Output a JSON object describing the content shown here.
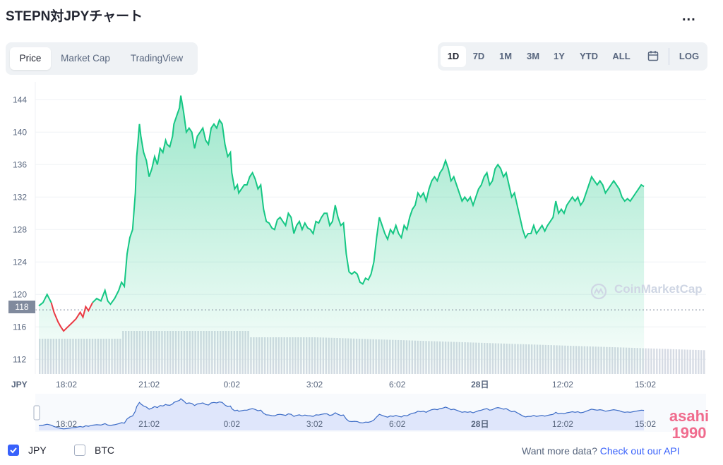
{
  "header": {
    "title": "STEPN対JPYチャート",
    "more_label": "..."
  },
  "tabs": [
    {
      "label": "Price",
      "active": true
    },
    {
      "label": "Market Cap",
      "active": false
    },
    {
      "label": "TradingView",
      "active": false
    }
  ],
  "ranges": [
    {
      "label": "1D",
      "active": true
    },
    {
      "label": "7D",
      "active": false
    },
    {
      "label": "1M",
      "active": false
    },
    {
      "label": "3M",
      "active": false
    },
    {
      "label": "1Y",
      "active": false
    },
    {
      "label": "YTD",
      "active": false
    },
    {
      "label": "ALL",
      "active": false
    }
  ],
  "log_label": "LOG",
  "current_price_label": "118",
  "watermark": "CoinMarketCap",
  "footer": {
    "legend_jpy": "JPY",
    "legend_btc": "BTC",
    "promo_text": "Want more data?",
    "promo_link": "Check out our API"
  },
  "stamp": {
    "line1": "asahi",
    "line2": "1990"
  },
  "colors": {
    "up_line": "#16c784",
    "down_line": "#ea3943",
    "area_fill": "#16c784",
    "volume": "#d6dbe4",
    "navigator_fill": "#dfe6fb",
    "navigator_line": "#3b6bc6",
    "accent": "#3861fb"
  },
  "chart_data": {
    "type": "line",
    "ylabel": "JPY",
    "yticks": [
      112,
      116,
      120,
      124,
      128,
      132,
      136,
      140,
      144
    ],
    "ylim": [
      110.2,
      146.2
    ],
    "xticks": [
      {
        "t": 1,
        "label": "18:02"
      },
      {
        "t": 4,
        "label": "21:02"
      },
      {
        "t": 7,
        "label": "0:02"
      },
      {
        "t": 10,
        "label": "3:02"
      },
      {
        "t": 13,
        "label": "6:02"
      },
      {
        "t": 16,
        "label": "28日"
      },
      {
        "t": 19,
        "label": "12:02"
      },
      {
        "t": 22,
        "label": "15:02"
      }
    ],
    "xlim": [
      0,
      24.2
    ],
    "baseline": 118.1,
    "grid": true,
    "series": [
      {
        "values": [
          [
            0.0,
            118.6
          ],
          [
            0.15,
            119.0
          ],
          [
            0.3,
            120.0
          ],
          [
            0.45,
            119.0
          ],
          [
            0.55,
            117.8
          ],
          [
            0.7,
            116.6
          ],
          [
            0.8,
            116.0
          ],
          [
            0.9,
            115.5
          ],
          [
            1.05,
            116.0
          ],
          [
            1.2,
            116.5
          ],
          [
            1.35,
            117.0
          ],
          [
            1.5,
            117.8
          ],
          [
            1.6,
            117.2
          ],
          [
            1.7,
            118.5
          ],
          [
            1.8,
            118.0
          ],
          [
            1.95,
            119.0
          ],
          [
            2.1,
            119.5
          ],
          [
            2.25,
            119.2
          ],
          [
            2.4,
            120.5
          ],
          [
            2.5,
            119.2
          ],
          [
            2.6,
            118.8
          ],
          [
            2.75,
            119.5
          ],
          [
            2.9,
            120.5
          ],
          [
            3.0,
            121.5
          ],
          [
            3.1,
            121.0
          ],
          [
            3.2,
            125.0
          ],
          [
            3.3,
            127.0
          ],
          [
            3.4,
            128.0
          ],
          [
            3.5,
            132.5
          ],
          [
            3.55,
            137.0
          ],
          [
            3.6,
            139.0
          ],
          [
            3.65,
            141.0
          ],
          [
            3.7,
            139.5
          ],
          [
            3.8,
            137.5
          ],
          [
            3.9,
            136.5
          ],
          [
            4.0,
            134.5
          ],
          [
            4.1,
            135.5
          ],
          [
            4.2,
            137.0
          ],
          [
            4.3,
            136.0
          ],
          [
            4.4,
            138.0
          ],
          [
            4.5,
            137.5
          ],
          [
            4.6,
            139.0
          ],
          [
            4.65,
            138.5
          ],
          [
            4.75,
            138.2
          ],
          [
            4.85,
            139.5
          ],
          [
            4.9,
            141.0
          ],
          [
            5.0,
            142.0
          ],
          [
            5.1,
            143.0
          ],
          [
            5.15,
            144.5
          ],
          [
            5.25,
            142.5
          ],
          [
            5.35,
            140.0
          ],
          [
            5.45,
            140.5
          ],
          [
            5.55,
            140.0
          ],
          [
            5.65,
            138.0
          ],
          [
            5.75,
            139.5
          ],
          [
            5.85,
            140.0
          ],
          [
            5.95,
            140.5
          ],
          [
            6.05,
            139.0
          ],
          [
            6.15,
            138.5
          ],
          [
            6.25,
            140.5
          ],
          [
            6.35,
            141.0
          ],
          [
            6.45,
            140.5
          ],
          [
            6.55,
            141.5
          ],
          [
            6.65,
            141.0
          ],
          [
            6.75,
            138.5
          ],
          [
            6.85,
            137.0
          ],
          [
            6.95,
            137.5
          ],
          [
            7.0,
            135.0
          ],
          [
            7.1,
            133.0
          ],
          [
            7.2,
            133.5
          ],
          [
            7.25,
            132.5
          ],
          [
            7.35,
            133.0
          ],
          [
            7.45,
            133.5
          ],
          [
            7.55,
            133.5
          ],
          [
            7.65,
            134.5
          ],
          [
            7.75,
            135.0
          ],
          [
            7.85,
            134.2
          ],
          [
            7.95,
            133.0
          ],
          [
            8.05,
            133.5
          ],
          [
            8.15,
            130.5
          ],
          [
            8.25,
            129.0
          ],
          [
            8.35,
            128.8
          ],
          [
            8.45,
            128.2
          ],
          [
            8.55,
            128.0
          ],
          [
            8.65,
            129.2
          ],
          [
            8.75,
            129.5
          ],
          [
            8.85,
            129.0
          ],
          [
            8.95,
            128.5
          ],
          [
            9.05,
            130.0
          ],
          [
            9.15,
            129.5
          ],
          [
            9.25,
            127.5
          ],
          [
            9.35,
            128.5
          ],
          [
            9.45,
            129.0
          ],
          [
            9.55,
            128.0
          ],
          [
            9.65,
            128.8
          ],
          [
            9.75,
            128.2
          ],
          [
            9.85,
            128.0
          ],
          [
            9.95,
            127.5
          ],
          [
            10.05,
            129.0
          ],
          [
            10.15,
            128.8
          ],
          [
            10.25,
            129.5
          ],
          [
            10.35,
            130.0
          ],
          [
            10.45,
            130.0
          ],
          [
            10.55,
            128.5
          ],
          [
            10.65,
            129.0
          ],
          [
            10.75,
            131.0
          ],
          [
            10.85,
            129.5
          ],
          [
            10.95,
            128.5
          ],
          [
            11.05,
            128.8
          ],
          [
            11.15,
            125.0
          ],
          [
            11.25,
            122.8
          ],
          [
            11.35,
            122.5
          ],
          [
            11.45,
            122.8
          ],
          [
            11.55,
            122.5
          ],
          [
            11.65,
            121.5
          ],
          [
            11.75,
            121.3
          ],
          [
            11.85,
            122.0
          ],
          [
            11.95,
            121.8
          ],
          [
            12.05,
            122.5
          ],
          [
            12.15,
            124.0
          ],
          [
            12.25,
            127.0
          ],
          [
            12.35,
            129.5
          ],
          [
            12.45,
            128.5
          ],
          [
            12.55,
            127.5
          ],
          [
            12.65,
            126.8
          ],
          [
            12.75,
            128.0
          ],
          [
            12.85,
            127.5
          ],
          [
            12.95,
            128.5
          ],
          [
            13.05,
            127.5
          ],
          [
            13.15,
            127.0
          ],
          [
            13.25,
            128.5
          ],
          [
            13.35,
            128.0
          ],
          [
            13.45,
            129.5
          ],
          [
            13.55,
            130.5
          ],
          [
            13.65,
            131.0
          ],
          [
            13.75,
            132.5
          ],
          [
            13.85,
            132.0
          ],
          [
            13.95,
            132.5
          ],
          [
            14.05,
            131.5
          ],
          [
            14.15,
            133.0
          ],
          [
            14.25,
            134.0
          ],
          [
            14.35,
            134.5
          ],
          [
            14.45,
            134.0
          ],
          [
            14.55,
            135.0
          ],
          [
            14.65,
            135.5
          ],
          [
            14.75,
            136.5
          ],
          [
            14.85,
            135.5
          ],
          [
            14.95,
            134.0
          ],
          [
            15.05,
            134.5
          ],
          [
            15.15,
            133.5
          ],
          [
            15.25,
            132.5
          ],
          [
            15.35,
            131.5
          ],
          [
            15.45,
            132.0
          ],
          [
            15.55,
            131.5
          ],
          [
            15.65,
            132.0
          ],
          [
            15.75,
            131.0
          ],
          [
            15.85,
            132.0
          ],
          [
            15.95,
            133.0
          ],
          [
            16.05,
            133.5
          ],
          [
            16.15,
            134.5
          ],
          [
            16.25,
            135.0
          ],
          [
            16.35,
            133.5
          ],
          [
            16.45,
            134.0
          ],
          [
            16.55,
            135.5
          ],
          [
            16.65,
            136.0
          ],
          [
            16.75,
            135.5
          ],
          [
            16.85,
            134.5
          ],
          [
            16.95,
            135.0
          ],
          [
            17.05,
            133.5
          ],
          [
            17.15,
            132.0
          ],
          [
            17.25,
            132.5
          ],
          [
            17.35,
            131.0
          ],
          [
            17.45,
            129.5
          ],
          [
            17.55,
            128.0
          ],
          [
            17.65,
            127.0
          ],
          [
            17.75,
            127.5
          ],
          [
            17.85,
            127.5
          ],
          [
            17.95,
            128.5
          ],
          [
            18.05,
            127.5
          ],
          [
            18.15,
            128.0
          ],
          [
            18.25,
            128.5
          ],
          [
            18.35,
            127.8
          ],
          [
            18.45,
            128.5
          ],
          [
            18.55,
            129.0
          ],
          [
            18.65,
            129.5
          ],
          [
            18.75,
            131.5
          ],
          [
            18.85,
            130.0
          ],
          [
            18.95,
            130.5
          ],
          [
            19.05,
            130.0
          ],
          [
            19.15,
            131.0
          ],
          [
            19.25,
            131.5
          ],
          [
            19.35,
            132.0
          ],
          [
            19.45,
            131.5
          ],
          [
            19.55,
            132.0
          ],
          [
            19.65,
            131.0
          ],
          [
            19.75,
            131.5
          ],
          [
            19.85,
            132.5
          ],
          [
            19.95,
            133.5
          ],
          [
            20.05,
            134.5
          ],
          [
            20.15,
            134.0
          ],
          [
            20.25,
            133.5
          ],
          [
            20.35,
            134.0
          ],
          [
            20.45,
            133.5
          ],
          [
            20.55,
            132.5
          ],
          [
            20.65,
            133.0
          ],
          [
            20.75,
            133.5
          ],
          [
            20.85,
            134.0
          ],
          [
            20.95,
            133.5
          ],
          [
            21.05,
            133.0
          ],
          [
            21.15,
            132.0
          ],
          [
            21.25,
            131.5
          ],
          [
            21.35,
            131.8
          ],
          [
            21.45,
            131.5
          ],
          [
            21.55,
            132.0
          ],
          [
            21.65,
            132.5
          ],
          [
            21.75,
            133.0
          ],
          [
            21.85,
            133.5
          ],
          [
            21.95,
            133.3
          ]
        ]
      }
    ],
    "navigator_xticks": [
      "18:02",
      "21:02",
      "0:02",
      "3:02",
      "6:02",
      "28日",
      "12:02",
      "15:02"
    ]
  }
}
